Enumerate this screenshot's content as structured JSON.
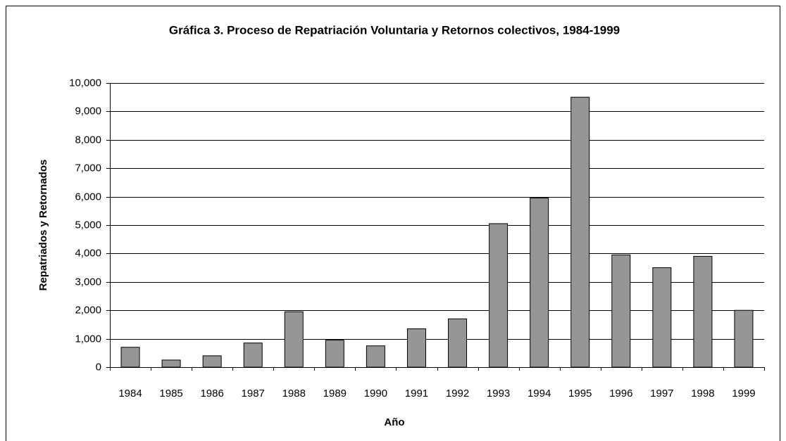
{
  "chart_data": {
    "type": "bar",
    "title": "Gráfica 3. Proceso de Repatriación Voluntaria y Retornos colectivos, 1984-1999",
    "x_label": "Año",
    "y_label": "Repatriados y Retornados",
    "categories": [
      "1984",
      "1985",
      "1986",
      "1987",
      "1988",
      "1989",
      "1990",
      "1991",
      "1992",
      "1993",
      "1994",
      "1995",
      "1996",
      "1997",
      "1998",
      "1999"
    ],
    "values": [
      700,
      250,
      400,
      850,
      1950,
      950,
      750,
      1350,
      1700,
      5050,
      5950,
      9500,
      3950,
      3500,
      3900,
      2000
    ],
    "color": "#969696",
    "ylim": [
      0,
      10000
    ],
    "yticks": [
      0,
      {
        "value": 1000,
        "label": "1,000"
      },
      {
        "value": 2000,
        "label": "2,000"
      },
      {
        "value": 3000,
        "label": "3,000"
      },
      {
        "value": 4000,
        "label": "4,000"
      },
      {
        "value": 5000,
        "label": "5,000"
      },
      {
        "value": 6000,
        "label": "6,000"
      },
      {
        "value": 7000,
        "label": "7,000"
      },
      {
        "value": 8000,
        "label": "8,000"
      },
      {
        "value": 9000,
        "label": "9,000"
      },
      {
        "value": 10000,
        "label": "10,000"
      }
    ],
    "grid": true
  }
}
